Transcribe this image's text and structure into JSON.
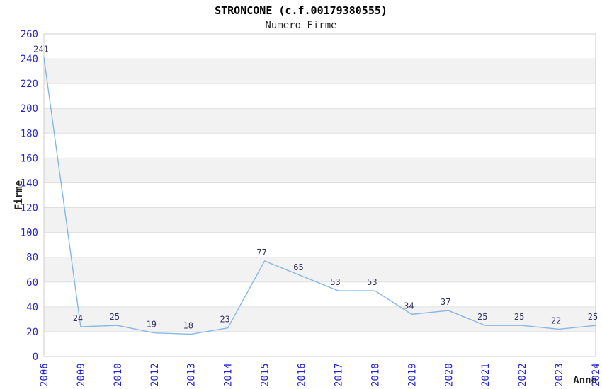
{
  "header": {
    "title": "STRONCONE (c.f.00179380555)",
    "subtitle": "Numero Firme"
  },
  "colors": {
    "background": "#ffffff",
    "title": "#000000",
    "subtitle": "#222222",
    "axis_title": "#222222",
    "tick_label": "#2424cc",
    "data_label": "#333366",
    "line": "#85b7e7",
    "band_alt": "#f2f2f2",
    "grid": "#e0e0e0",
    "plot_border": "#cccccc"
  },
  "chart_data": {
    "type": "line",
    "title": "STRONCONE (c.f.00179380555)",
    "subtitle": "Numero Firme",
    "xlabel": "Anno",
    "ylabel": "Firme",
    "categories": [
      "2006",
      "2009",
      "2010",
      "2012",
      "2013",
      "2014",
      "2015",
      "2016",
      "2017",
      "2018",
      "2019",
      "2020",
      "2021",
      "2022",
      "2023",
      "2024"
    ],
    "values": [
      241,
      24,
      25,
      19,
      18,
      23,
      77,
      65,
      53,
      53,
      34,
      37,
      25,
      25,
      22,
      25
    ],
    "ylim": [
      0,
      260
    ],
    "ytick_step": 20,
    "grid": true,
    "bands": "alternating-horizontal",
    "legend": "none",
    "data_labels": true
  }
}
